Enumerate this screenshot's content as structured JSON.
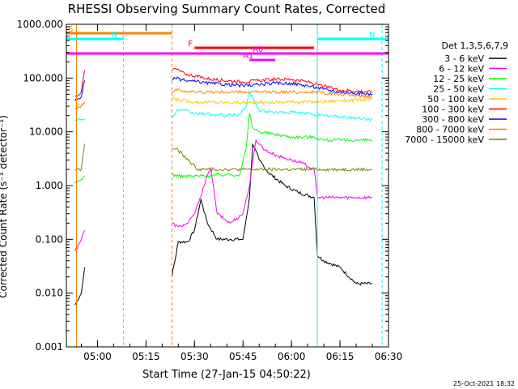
{
  "chart_data": {
    "type": "line",
    "title": "RHESSI Observing Summary Count Rates, Corrected",
    "xlabel": "Start Time (27-Jan-15 04:50:22)",
    "ylabel": "Corrected Count Rate (s⁻¹ detector⁻¹)",
    "y_scale": "log",
    "ylim": [
      0.001,
      1000
    ],
    "xlim": [
      "04:50:22",
      "06:30:00"
    ],
    "x_ticks": [
      "05:00",
      "05:15",
      "05:30",
      "05:45",
      "06:00",
      "06:15",
      "06:30"
    ],
    "y_ticks": [
      "0.001",
      "0.010",
      "0.100",
      "1.000",
      "10.000",
      "100.000",
      "1000.000"
    ],
    "legend_title": "Det 1,3,5,6,7,9",
    "legend_position": "right",
    "footer": "25-Oct-2021 18:32",
    "series": [
      {
        "name": "3 - 6 keV",
        "color": "#000000",
        "x": [
          "04:53",
          "04:55",
          "04:56",
          "05:23",
          "05:25",
          "05:28",
          "05:30",
          "05:32",
          "05:34",
          "05:37",
          "05:41",
          "05:45",
          "05:47",
          "05:48",
          "05:50",
          "05:53",
          "05:58",
          "06:02",
          "06:07",
          "06:08",
          "06:10",
          "06:15",
          "06:20",
          "06:25"
        ],
        "y": [
          0.006,
          0.01,
          0.03,
          0.02,
          0.09,
          0.09,
          0.15,
          0.55,
          0.2,
          0.1,
          0.1,
          0.1,
          0.6,
          6,
          3,
          1.7,
          1,
          0.75,
          0.6,
          0.05,
          0.04,
          0.03,
          0.015,
          0.015
        ]
      },
      {
        "name": "6 - 12 keV",
        "color": "#ff00ff",
        "x": [
          "04:53",
          "04:55",
          "04:56",
          "05:23",
          "05:25",
          "05:28",
          "05:30",
          "05:33",
          "05:35",
          "05:37",
          "05:41",
          "05:45",
          "05:47",
          "05:49",
          "05:52",
          "05:56",
          "06:00",
          "06:04",
          "06:07",
          "06:08",
          "06:12",
          "06:20",
          "06:25"
        ],
        "y": [
          0.06,
          0.1,
          0.15,
          0.2,
          0.17,
          0.2,
          0.3,
          1,
          2.2,
          0.3,
          0.2,
          0.3,
          1,
          7,
          4.5,
          3.5,
          3,
          2.5,
          2,
          0.6,
          0.6,
          0.6,
          0.6
        ]
      },
      {
        "name": "12 - 25 keV",
        "color": "#00ff00",
        "x": [
          "04:53",
          "04:55",
          "04:56",
          "05:23",
          "05:25",
          "05:30",
          "05:40",
          "05:44",
          "05:46",
          "05:47",
          "05:48",
          "05:50",
          "05:55",
          "06:00",
          "06:07",
          "06:10",
          "06:15",
          "06:20",
          "06:25"
        ],
        "y": [
          1.1,
          1.3,
          1.5,
          1.6,
          1.5,
          1.5,
          1.6,
          1.6,
          5,
          22,
          12,
          10,
          9,
          8,
          8,
          7,
          7,
          7,
          7
        ]
      },
      {
        "name": "25 - 50 keV",
        "color": "#00ffff",
        "x": [
          "04:53",
          "04:55",
          "04:56",
          "05:23",
          "05:25",
          "05:30",
          "05:40",
          "05:44",
          "05:46",
          "05:47",
          "05:50",
          "05:55",
          "06:00",
          "06:05",
          "06:10",
          "06:15",
          "06:20",
          "06:25"
        ],
        "y": [
          17,
          17,
          18,
          18,
          26,
          22,
          20,
          21,
          30,
          55,
          25,
          23,
          23,
          22,
          20,
          19,
          18,
          17
        ]
      },
      {
        "name": "50 - 100 keV",
        "color": "#ffc800",
        "x": [
          "04:53",
          "04:55",
          "04:56",
          "05:23",
          "05:24",
          "05:30",
          "05:40",
          "05:50",
          "06:00",
          "06:07",
          "06:15",
          "06:25"
        ],
        "y": [
          30,
          32,
          34,
          45,
          40,
          36,
          35,
          35,
          36,
          36,
          38,
          40
        ]
      },
      {
        "name": "100 - 300 keV",
        "color": "#ff0000",
        "x": [
          "04:53",
          "04:55",
          "04:56",
          "05:23",
          "05:24",
          "05:27",
          "05:35",
          "05:45",
          "05:55",
          "06:00",
          "06:05",
          "06:10",
          "06:15",
          "06:25"
        ],
        "y": [
          45,
          55,
          140,
          140,
          150,
          120,
          95,
          85,
          95,
          95,
          85,
          70,
          60,
          55
        ]
      },
      {
        "name": "300 - 800 keV",
        "color": "#0000ff",
        "x": [
          "04:53",
          "04:55",
          "04:56",
          "05:23",
          "05:24",
          "05:27",
          "05:35",
          "05:45",
          "05:55",
          "06:00",
          "06:05",
          "06:10",
          "06:15",
          "06:25"
        ],
        "y": [
          38,
          45,
          90,
          90,
          100,
          90,
          80,
          72,
          80,
          80,
          72,
          62,
          55,
          50
        ]
      },
      {
        "name": "800 - 7000 keV",
        "color": "#ff8000",
        "x": [
          "04:53",
          "04:55",
          "04:56",
          "05:23",
          "05:24",
          "05:30",
          "05:40",
          "05:50",
          "06:00",
          "06:07",
          "06:15",
          "06:25"
        ],
        "y": [
          28,
          30,
          36,
          55,
          60,
          55,
          55,
          55,
          55,
          55,
          50,
          45
        ]
      },
      {
        "name": "7000 - 15000 keV",
        "color": "#808000",
        "x": [
          "04:53",
          "04:55",
          "04:56",
          "05:23",
          "05:25",
          "05:28",
          "05:31",
          "05:33",
          "05:36",
          "05:40",
          "05:45",
          "05:50",
          "05:55",
          "06:00",
          "06:05",
          "06:10",
          "06:15",
          "06:25"
        ],
        "y": [
          2,
          2,
          6,
          5,
          4.5,
          3,
          2,
          2,
          2,
          2,
          2,
          2,
          2,
          2,
          2,
          2,
          2,
          2
        ]
      }
    ],
    "flag_bars": [
      {
        "label": "S",
        "color": "#ff8000",
        "row": "top",
        "start": "04:50:22",
        "end": "05:23:00"
      },
      {
        "label": "N",
        "color": "#00ffff",
        "row": "second",
        "start": "04:50:22",
        "end": "05:08:00"
      },
      {
        "label": "N",
        "color": "#00ffff",
        "row": "second",
        "start": "06:08:00",
        "end": "06:30:00"
      },
      {
        "label": "F",
        "color": "#ff0000",
        "row": "third",
        "start": "05:30:00",
        "end": "06:07:00"
      },
      {
        "label": "A0",
        "color": "#ff00ff",
        "row": "fourth",
        "start": "04:50:22",
        "end": "06:30:00"
      },
      {
        "label": "A1",
        "color": "#ff00ff",
        "row": "fifth",
        "start": "05:47:00",
        "end": "05:55:00"
      }
    ],
    "vlines": [
      {
        "time": "04:53:30",
        "color": "#ff8000",
        "style": "solid"
      },
      {
        "time": "05:08:00",
        "color": "#00ffff",
        "style": "dashed"
      },
      {
        "time": "05:23:00",
        "color": "#ff8000",
        "style": "dashed"
      },
      {
        "time": "06:08:00",
        "color": "#00ffff",
        "style": "solid"
      },
      {
        "time": "06:28:00",
        "color": "#00ffff",
        "style": "dashed"
      }
    ]
  }
}
